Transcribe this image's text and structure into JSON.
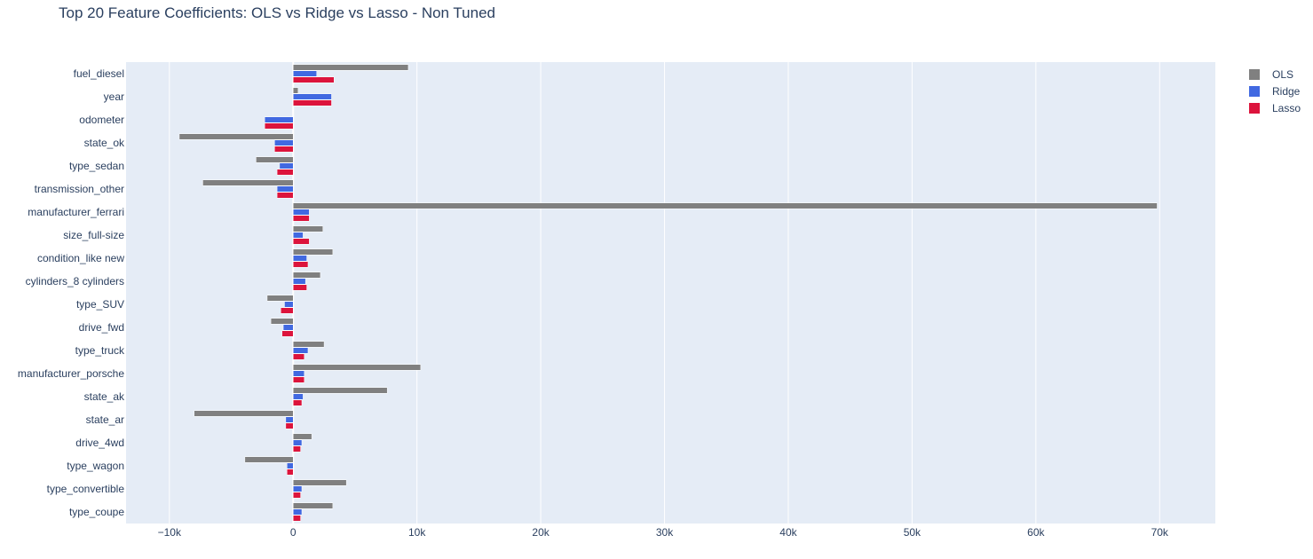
{
  "chart_data": {
    "type": "bar",
    "orientation": "horizontal",
    "title": "Top 20 Feature Coefficients: OLS vs Ridge vs Lasso - Non Tuned",
    "xlabel": "",
    "ylabel": "",
    "categories": [
      "fuel_diesel",
      "year",
      "odometer",
      "state_ok",
      "type_sedan",
      "transmission_other",
      "manufacturer_ferrari",
      "size_full-size",
      "condition_like new",
      "cylinders_8 cylinders",
      "type_SUV",
      "drive_fwd",
      "type_truck",
      "manufacturer_porsche",
      "state_ak",
      "state_ar",
      "drive_4wd",
      "type_wagon",
      "type_convertible",
      "type_coupe"
    ],
    "series": [
      {
        "name": "OLS",
        "color": "#808080",
        "values": [
          9300,
          400,
          0,
          -9200,
          -3000,
          -7300,
          69800,
          2400,
          3200,
          2200,
          -2100,
          -1800,
          2500,
          10300,
          7600,
          -8000,
          1500,
          -3900,
          4300,
          3200
        ]
      },
      {
        "name": "Ridge",
        "color": "#4169e1",
        "values": [
          1900,
          3100,
          -2300,
          -1500,
          -1100,
          -1300,
          1300,
          800,
          1100,
          1000,
          -700,
          -800,
          1200,
          900,
          800,
          -600,
          700,
          -500,
          700,
          700
        ]
      },
      {
        "name": "Lasso",
        "color": "#dc143c",
        "values": [
          3300,
          3100,
          -2300,
          -1500,
          -1300,
          -1300,
          1300,
          1300,
          1200,
          1100,
          -1000,
          -900,
          900,
          900,
          700,
          -600,
          600,
          -500,
          600,
          600
        ]
      }
    ],
    "xlim": [
      -13500,
      74500
    ],
    "xticks": [
      -10000,
      0,
      10000,
      20000,
      30000,
      40000,
      50000,
      60000,
      70000
    ],
    "xtick_labels": [
      "−10k",
      "0",
      "10k",
      "20k",
      "30k",
      "40k",
      "50k",
      "60k",
      "70k"
    ],
    "grid": true,
    "legend_position": "top-right",
    "background_color": "#e5ecf6"
  }
}
